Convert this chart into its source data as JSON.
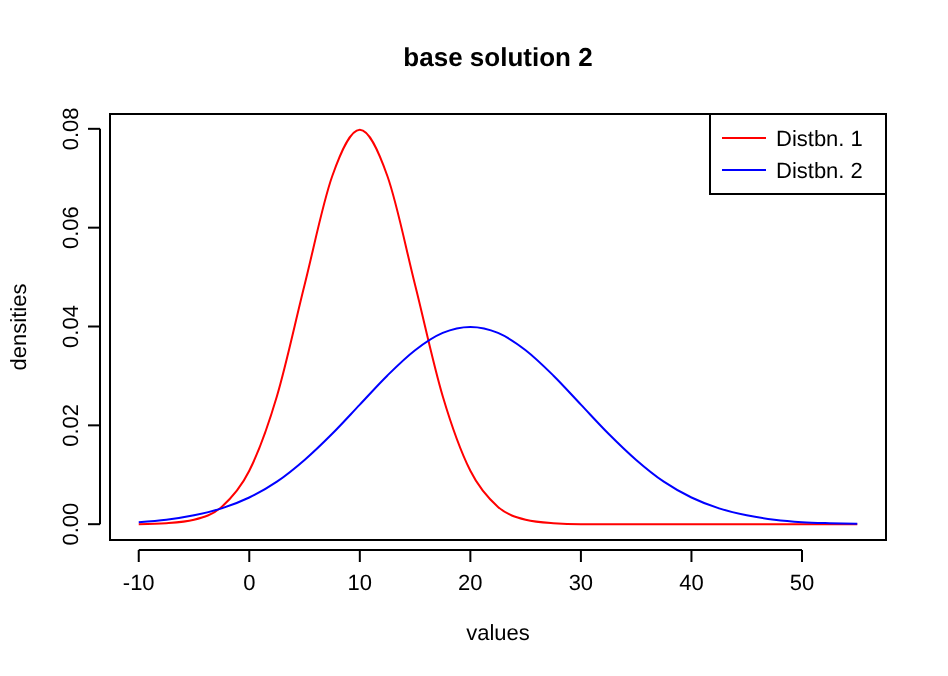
{
  "chart_data": {
    "type": "line",
    "title": "base solution 2",
    "xlabel": "values",
    "ylabel": "densities",
    "x": [
      -10,
      -7.5,
      -5,
      -2.5,
      0,
      2.5,
      5,
      7.5,
      10,
      12.5,
      15,
      17.5,
      20,
      22.5,
      25,
      27.5,
      30,
      32.5,
      35,
      37.5,
      40,
      42.5,
      45,
      47.5,
      50,
      52.5,
      55
    ],
    "series": [
      {
        "name": "Distbn. 1",
        "color": "#ff0000",
        "values": [
          0.0,
          0.0002,
          0.0009,
          0.0035,
          0.0108,
          0.0259,
          0.0484,
          0.0704,
          0.0798,
          0.0704,
          0.0484,
          0.0259,
          0.0108,
          0.0035,
          0.0009,
          0.0002,
          0.0,
          0,
          0,
          0,
          0,
          0,
          0,
          0,
          0,
          0,
          0
        ]
      },
      {
        "name": "Distbn. 2",
        "color": "#0000ff",
        "values": [
          0.0004,
          0.0009,
          0.0018,
          0.0032,
          0.0054,
          0.0086,
          0.013,
          0.0183,
          0.0242,
          0.0301,
          0.0352,
          0.0387,
          0.0399,
          0.0387,
          0.0352,
          0.0301,
          0.0242,
          0.0183,
          0.013,
          0.0086,
          0.0054,
          0.0032,
          0.0018,
          0.0009,
          0.0004,
          0.0002,
          0.0001
        ]
      }
    ],
    "xlim": [
      -12.6,
      57.6
    ],
    "ylim": [
      -0.0032,
      0.083
    ],
    "xticks": [
      -10,
      0,
      10,
      20,
      30,
      40,
      50
    ],
    "yticks": [
      {
        "value": 0,
        "label": "0.00"
      },
      {
        "value": 0.02,
        "label": "0.02"
      },
      {
        "value": 0.04,
        "label": "0.04"
      },
      {
        "value": 0.06,
        "label": "0.06"
      },
      {
        "value": 0.08,
        "label": "0.08"
      }
    ],
    "legend": "top right",
    "marker": "none",
    "line_style": "solid"
  }
}
